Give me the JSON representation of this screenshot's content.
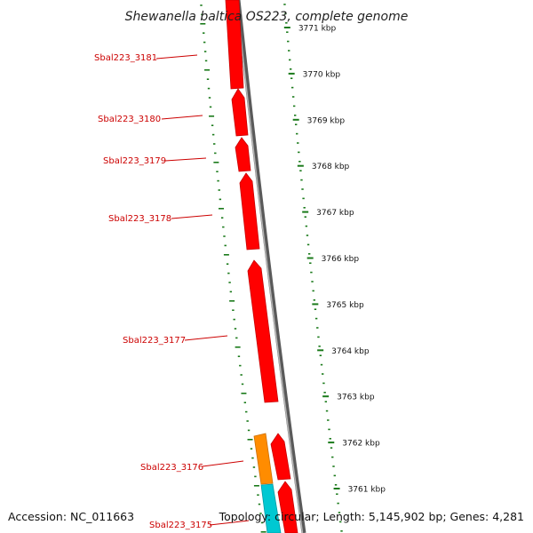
{
  "title": "Shewanella baltica OS223, complete genome",
  "footer": {
    "accession": "Accession: NC_011663",
    "topology": "Topology: circular; Length: 5,145,902 bp; Genes: 4,281"
  },
  "colors": {
    "gene_red": "#ff0000",
    "gene_orange": "#ff8c00",
    "gene_cyan": "#00c8d2",
    "backbone": "#8a8a8a",
    "ticks": "#1a7a1a",
    "label": "#cc0000"
  },
  "ruler": {
    "unit": "kbp",
    "ticks": [
      {
        "kbp": 3771,
        "label": "3771 kbp"
      },
      {
        "kbp": 3770,
        "label": "3770 kbp"
      },
      {
        "kbp": 3769,
        "label": "3769 kbp"
      },
      {
        "kbp": 3768,
        "label": "3768 kbp"
      },
      {
        "kbp": 3767,
        "label": "3767 kbp"
      },
      {
        "kbp": 3766,
        "label": "3766 kbp"
      },
      {
        "kbp": 3765,
        "label": "3765 kbp"
      },
      {
        "kbp": 3764,
        "label": "3764 kbp"
      },
      {
        "kbp": 3763,
        "label": "3763 kbp"
      },
      {
        "kbp": 3762,
        "label": "3762 kbp"
      },
      {
        "kbp": 3761,
        "label": "3761 kbp"
      }
    ]
  },
  "genes": [
    {
      "label": "Sbal223_3181"
    },
    {
      "label": "Sbal223_3180"
    },
    {
      "label": "Sbal223_3179"
    },
    {
      "label": "Sbal223_3178"
    },
    {
      "label": "Sbal223_3177"
    },
    {
      "label": "Sbal223_3176"
    },
    {
      "label": "Sbal223_3175"
    }
  ]
}
